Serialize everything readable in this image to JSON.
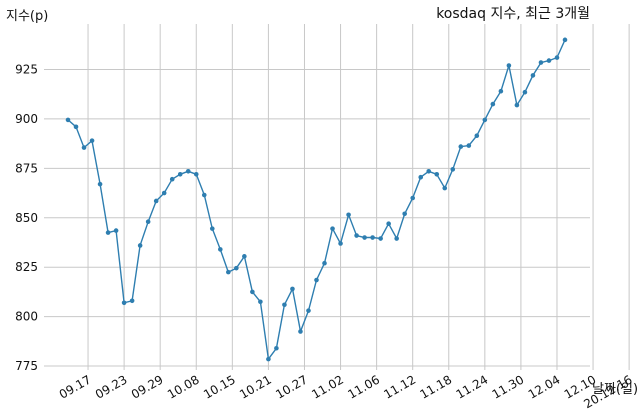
{
  "chart_data": {
    "type": "line",
    "title": "kosdaq 지수, 최근 3개월",
    "xlabel": "날짜(일)",
    "ylabel": "지수(p)",
    "ylim": [
      773,
      948
    ],
    "yticks": [
      775,
      800,
      825,
      850,
      875,
      900,
      925
    ],
    "grid": true,
    "x_tick_labels": [
      "09.17",
      "09.23",
      "09.29",
      "10.08",
      "10.15",
      "10.21",
      "10.27",
      "11.02",
      "11.06",
      "11.12",
      "11.18",
      "11.24",
      "11.30",
      "12.04",
      "12.10",
      "20.12.16"
    ],
    "x_tick_positions": [
      2.5,
      7,
      11.5,
      16,
      20.5,
      25,
      29.5,
      34,
      38.5,
      43,
      47.5,
      52,
      56.5,
      61,
      65.5,
      70
    ],
    "line_color": "#2e7eb0",
    "series": [
      {
        "values": [
          899.5,
          896,
          885.5,
          889,
          867,
          842.5,
          843.5,
          807,
          808,
          836,
          848,
          858.5,
          862.5,
          869.5,
          872,
          873.5,
          872,
          861.5,
          844.5,
          834,
          822.5,
          824.5,
          830.5,
          812.5,
          807.5,
          778.5,
          784,
          806,
          814,
          792.5,
          803,
          818.5,
          827,
          844.5,
          837,
          851.5,
          841,
          840,
          840,
          839.5,
          847,
          839.5,
          852,
          860,
          870.5,
          873.5,
          872,
          865,
          874.5,
          886,
          886.5,
          891.5,
          899.5,
          907.5,
          914,
          927,
          907,
          913.5,
          922,
          928.5,
          929.5,
          931,
          940
        ]
      }
    ]
  }
}
